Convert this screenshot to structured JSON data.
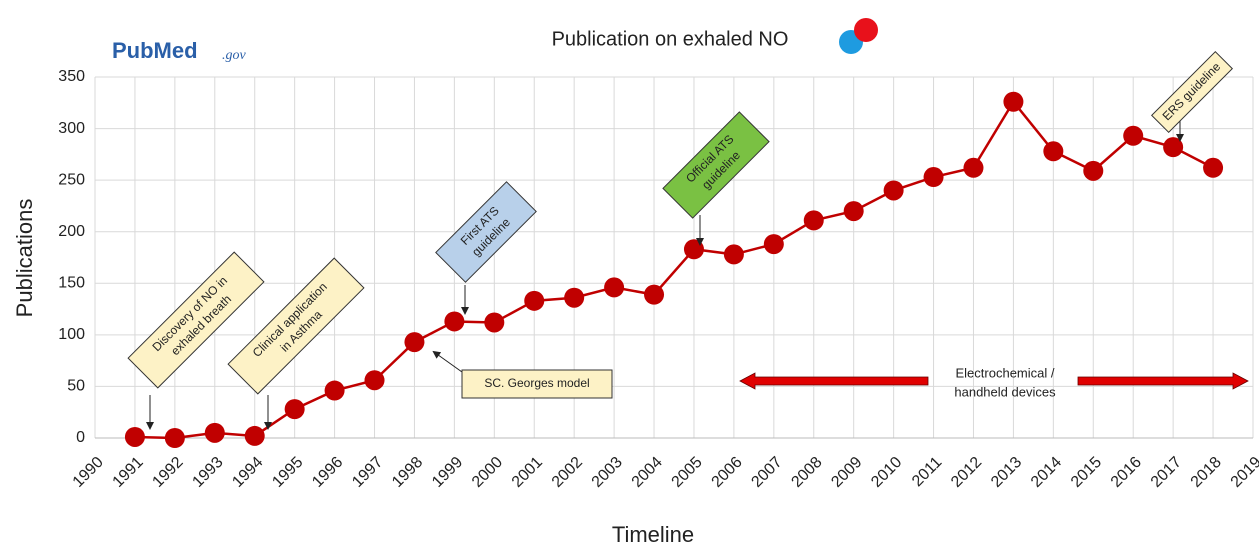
{
  "logo": {
    "text": "PubMed",
    "suffix": ".gov"
  },
  "chart_data": {
    "type": "line",
    "title": "Publication on exhaled NO",
    "xlabel": "Timeline",
    "ylabel": "Publications",
    "x": [
      1991,
      1992,
      1993,
      1994,
      1995,
      1996,
      1997,
      1998,
      1999,
      2000,
      2001,
      2002,
      2003,
      2004,
      2005,
      2006,
      2007,
      2008,
      2009,
      2010,
      2011,
      2012,
      2013,
      2014,
      2015,
      2016,
      2017,
      2018
    ],
    "values": [
      1,
      0,
      5,
      2,
      28,
      46,
      56,
      93,
      113,
      112,
      133,
      136,
      146,
      139,
      183,
      178,
      188,
      211,
      220,
      240,
      253,
      262,
      326,
      278,
      259,
      293,
      282,
      262
    ],
    "color": "#c00000",
    "xlim": [
      1990,
      2019
    ],
    "xticks": [
      1990,
      1991,
      1992,
      1993,
      1994,
      1995,
      1996,
      1997,
      1998,
      1999,
      2000,
      2001,
      2002,
      2003,
      2004,
      2005,
      2006,
      2007,
      2008,
      2009,
      2010,
      2011,
      2012,
      2013,
      2014,
      2015,
      2016,
      2017,
      2018,
      2019
    ],
    "ylim": [
      0,
      350
    ],
    "yticks": [
      0,
      50,
      100,
      150,
      200,
      250,
      300,
      350
    ],
    "grid": true,
    "annotations": [
      {
        "lines": [
          "Discovery of NO in",
          "exhaled breath"
        ],
        "color": "#fdf2c6"
      },
      {
        "lines": [
          "Clinical application",
          "in Asthma"
        ],
        "color": "#fdf2c6"
      },
      {
        "lines": [
          "First ATS",
          "guideline"
        ],
        "color": "#b8d0ea"
      },
      {
        "lines": [
          "Official ATS",
          "guideline"
        ],
        "color": "#7ac143"
      },
      {
        "lines": [
          "ERS guideline"
        ],
        "color": "#fdf2c6"
      },
      {
        "lines": [
          "SC. Georges model"
        ],
        "color": "#fdf2c6"
      },
      {
        "lines": [
          "Electrochemical /",
          "handheld devices"
        ],
        "color": "#e00000"
      }
    ]
  }
}
